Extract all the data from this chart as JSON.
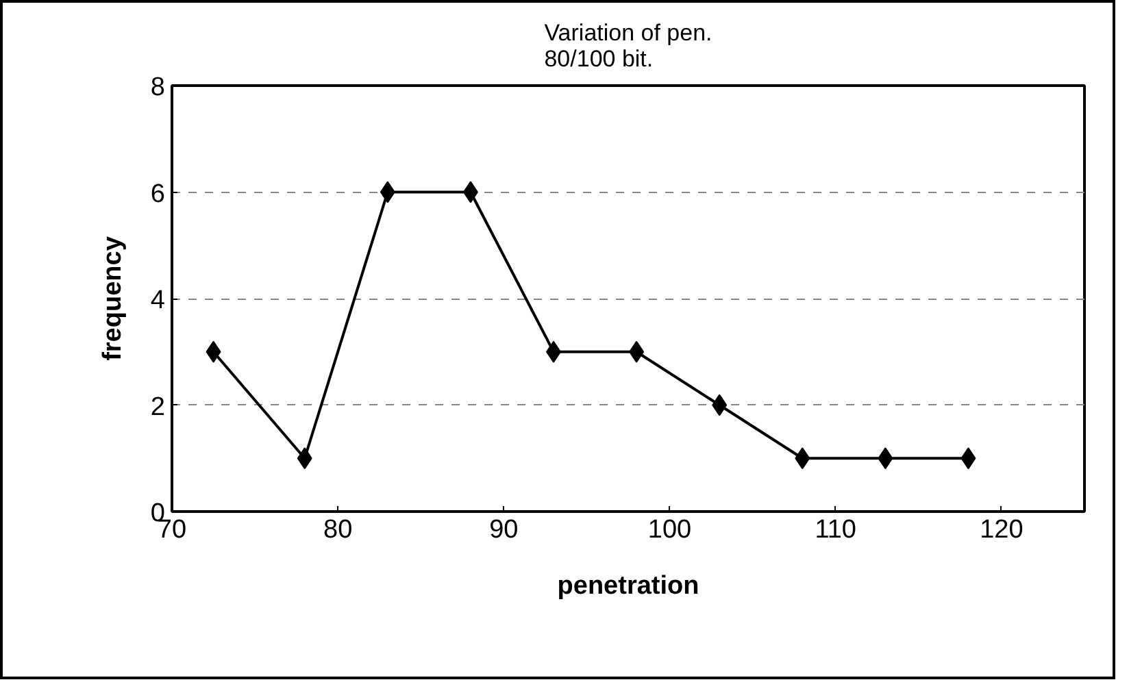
{
  "chart_data": {
    "type": "line",
    "title": "Variation of pen.\n80/100 bit.",
    "xlabel": "penetration",
    "ylabel": "frequency",
    "x": [
      72.5,
      78,
      83,
      88,
      93,
      98,
      103,
      108,
      113,
      118
    ],
    "series": [
      {
        "color": "#000000",
        "values": [
          3,
          1,
          6,
          6,
          3,
          3,
          2,
          1,
          1,
          1
        ]
      }
    ],
    "xlim": [
      70,
      125
    ],
    "xticks": [
      70,
      80,
      90,
      100,
      110,
      120
    ],
    "ylim": [
      0,
      8
    ],
    "yticks": [
      0,
      2,
      4,
      6,
      8
    ],
    "grid": "y",
    "marker": "diamond",
    "line_style": "solid"
  }
}
